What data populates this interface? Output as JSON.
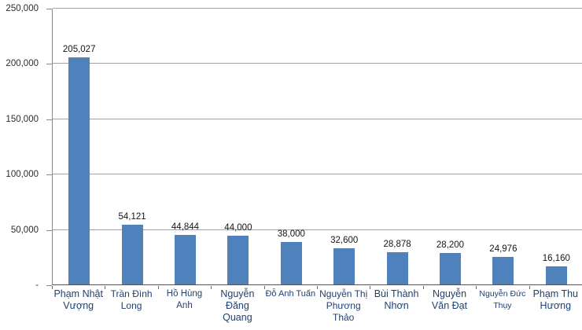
{
  "chart_data": {
    "type": "bar",
    "title": "",
    "xlabel": "",
    "ylabel": "",
    "categories": [
      "Phạm Nhật Vượng",
      "Trần Đình Long",
      "Hồ Hùng Anh",
      "Nguyễn Đăng Quang",
      "Đỗ Anh Tuấn",
      "Nguyễn Thị Phương Thảo",
      "Bùi Thành Nhơn",
      "Nguyễn Văn Đạt",
      "Nguyễn Đức Thụy",
      "Phạm Thu Hương"
    ],
    "values": [
      205027,
      54121,
      44844,
      44000,
      38000,
      32600,
      28878,
      28200,
      24976,
      16160
    ],
    "value_labels": [
      "205,027",
      "54,121",
      "44,844",
      "44,000",
      "38,000",
      "32,600",
      "28,878",
      "28,200",
      "24,976",
      "16,160"
    ],
    "yticks": [
      {
        "label": "250,000",
        "value": 250000
      },
      {
        "label": "200,000",
        "value": 200000
      },
      {
        "label": "150,000",
        "value": 150000
      },
      {
        "label": "100,000",
        "value": 100000
      },
      {
        "label": "50,000",
        "value": 50000
      },
      {
        "label": "-",
        "value": 0
      }
    ],
    "ylim": [
      0,
      250000
    ],
    "grid": true,
    "legend": "none",
    "bar_color": "#4f81bd",
    "gridline_color": "#a2a3aa",
    "category_label_color": "#1f4070",
    "value_label_color": "#151515"
  }
}
